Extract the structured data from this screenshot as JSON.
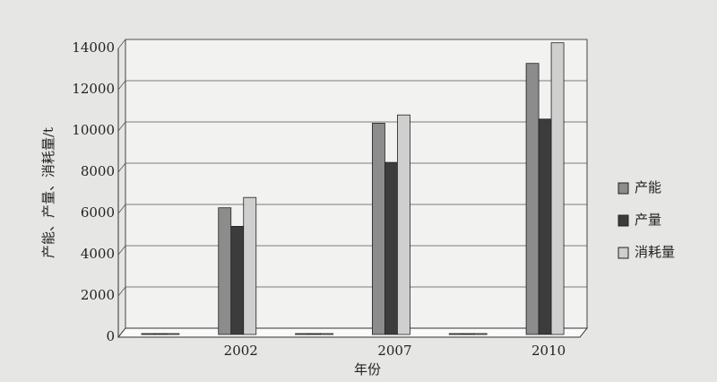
{
  "chart_data": {
    "type": "bar",
    "y_label": "产能、产量、消耗量/t",
    "x_label": "年份",
    "categories": [
      null,
      "2002",
      null,
      "2007",
      null,
      "2010"
    ],
    "series": [
      {
        "name": "产能",
        "color": "#8c8c8c",
        "values": [
          0,
          6100,
          0,
          10200,
          0,
          13100
        ]
      },
      {
        "name": "产量",
        "color": "#3c3c3c",
        "values": [
          0,
          5200,
          0,
          8300,
          0,
          10400
        ]
      },
      {
        "name": "消耗量",
        "color": "#cfcfcf",
        "values": [
          0,
          6600,
          0,
          10600,
          0,
          14100
        ]
      }
    ],
    "ylim": [
      0,
      14000
    ],
    "yticks": [
      0,
      2000,
      4000,
      6000,
      8000,
      10000,
      12000,
      14000
    ],
    "grid": true,
    "legend": "right"
  }
}
